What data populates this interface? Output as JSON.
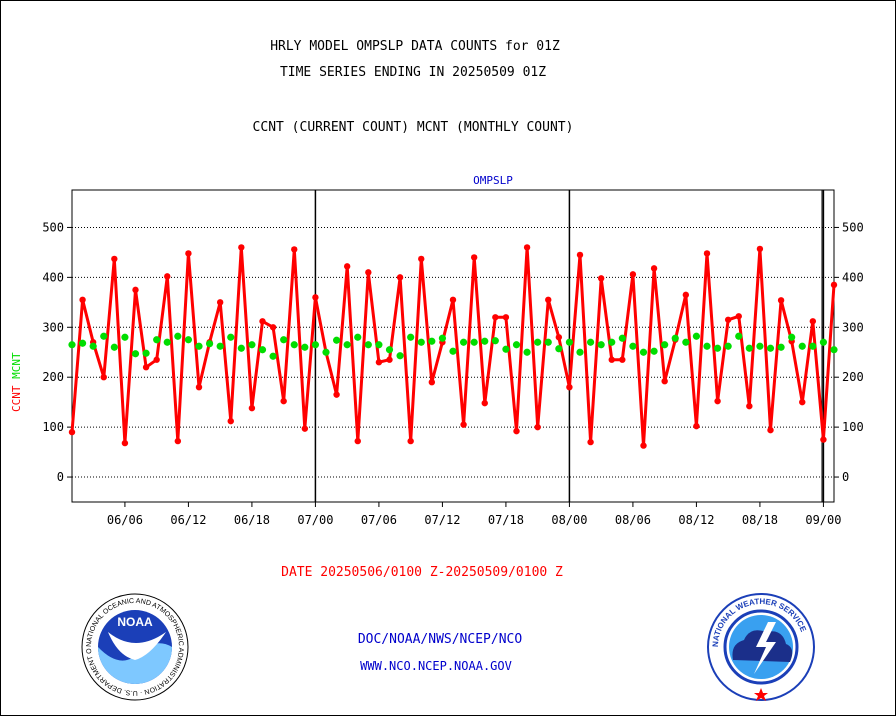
{
  "header": {
    "line1": "HRLY MODEL OMPSLP DATA COUNTS for 01Z",
    "line2": "TIME SERIES ENDING IN 20250509 01Z",
    "line3": "CCNT (CURRENT COUNT) MCNT (MONTHLY COUNT)"
  },
  "footer": {
    "date_range": "DATE 20250506/0100 Z-20250509/0100 Z",
    "org": "DOC/NOAA/NWS/NCEP/NCO",
    "url": "WWW.NCO.NCEP.NOAA.GOV"
  },
  "logos": {
    "noaa_center": "NOAA",
    "noaa_ring": "NATIONAL OCEANIC AND ATMOSPHERIC ADMINISTRATION · U.S. DEPARTMENT OF COMMERCE",
    "nws_ring": "NATIONAL WEATHER SERVICE"
  },
  "colors": {
    "ccnt": "#ff0000",
    "mcnt": "#00dd00",
    "title": "#0000cc",
    "footer_red": "#ff0000",
    "footer_blue": "#0000cc"
  },
  "chart_data": {
    "type": "line",
    "title": "OMPSLP",
    "ylabel_ccnt": "CCNT",
    "ylabel_mcnt": "MCNT",
    "ylim": [
      -50,
      575
    ],
    "yticks": [
      0,
      100,
      200,
      300,
      400,
      500
    ],
    "grid": true,
    "x_tick_labels": [
      "06/06",
      "06/12",
      "06/18",
      "07/00",
      "07/06",
      "07/12",
      "07/18",
      "08/00",
      "08/06",
      "08/12",
      "08/18",
      "09/00"
    ],
    "x_tick_hours": [
      5,
      11,
      17,
      23,
      29,
      35,
      41,
      47,
      53,
      59,
      65,
      71
    ],
    "day_boundary_hours": [
      23,
      47,
      71
    ],
    "xlim": [
      0,
      72
    ],
    "series": [
      {
        "name": "CCNT",
        "x": [
          0,
          1,
          2,
          3,
          4,
          5,
          6,
          7,
          8,
          9,
          10,
          11,
          12,
          13,
          14,
          15,
          16,
          17,
          18,
          19,
          20,
          21,
          22,
          23,
          24,
          25,
          26,
          27,
          28,
          29,
          30,
          31,
          32,
          33,
          34,
          35,
          36,
          37,
          38,
          39,
          40,
          41,
          42,
          43,
          44,
          45,
          46,
          47,
          48,
          49,
          50,
          51,
          52,
          53,
          54,
          55,
          56,
          57,
          58,
          59,
          60,
          61,
          62,
          63,
          64,
          65,
          66,
          67,
          68,
          69,
          70,
          71,
          72
        ],
        "values": [
          90,
          355,
          270,
          200,
          437,
          68,
          375,
          220,
          235,
          402,
          72,
          448,
          180,
          270,
          350,
          112,
          460,
          138,
          312,
          300,
          152,
          456,
          97,
          360,
          250,
          165,
          422,
          72,
          410,
          230,
          235,
          400,
          72,
          437,
          190,
          270,
          355,
          105,
          440,
          148,
          320,
          320,
          92,
          460,
          100,
          355,
          280,
          180,
          445,
          70,
          398,
          235,
          235,
          406,
          63,
          418,
          192,
          275,
          365,
          102,
          448,
          152,
          315,
          322,
          142,
          457,
          94,
          354,
          272,
          150,
          312,
          75,
          385
        ]
      },
      {
        "name": "MCNT",
        "x": [
          0,
          1,
          2,
          3,
          4,
          5,
          6,
          7,
          8,
          9,
          10,
          11,
          12,
          13,
          14,
          15,
          16,
          17,
          18,
          19,
          20,
          21,
          22,
          23,
          24,
          25,
          26,
          27,
          28,
          29,
          30,
          31,
          32,
          33,
          34,
          35,
          36,
          37,
          38,
          39,
          40,
          41,
          42,
          43,
          44,
          45,
          46,
          47,
          48,
          49,
          50,
          51,
          52,
          53,
          54,
          55,
          56,
          57,
          58,
          59,
          60,
          61,
          62,
          63,
          64,
          65,
          66,
          67,
          68,
          69,
          70,
          71,
          72
        ],
        "values": [
          265,
          268,
          262,
          282,
          260,
          280,
          247,
          248,
          275,
          270,
          282,
          275,
          262,
          267,
          262,
          280,
          258,
          265,
          255,
          242,
          275,
          265,
          260,
          265,
          250,
          274,
          265,
          280,
          265,
          265,
          255,
          243,
          280,
          270,
          272,
          278,
          252,
          270,
          270,
          272,
          273,
          256,
          265,
          250,
          270,
          270,
          257,
          270,
          250,
          270,
          265,
          270,
          278,
          262,
          250,
          252,
          265,
          278,
          270,
          282,
          262,
          258,
          262,
          282,
          258,
          262,
          258,
          260,
          280,
          262,
          262,
          270,
          255
        ]
      }
    ]
  }
}
